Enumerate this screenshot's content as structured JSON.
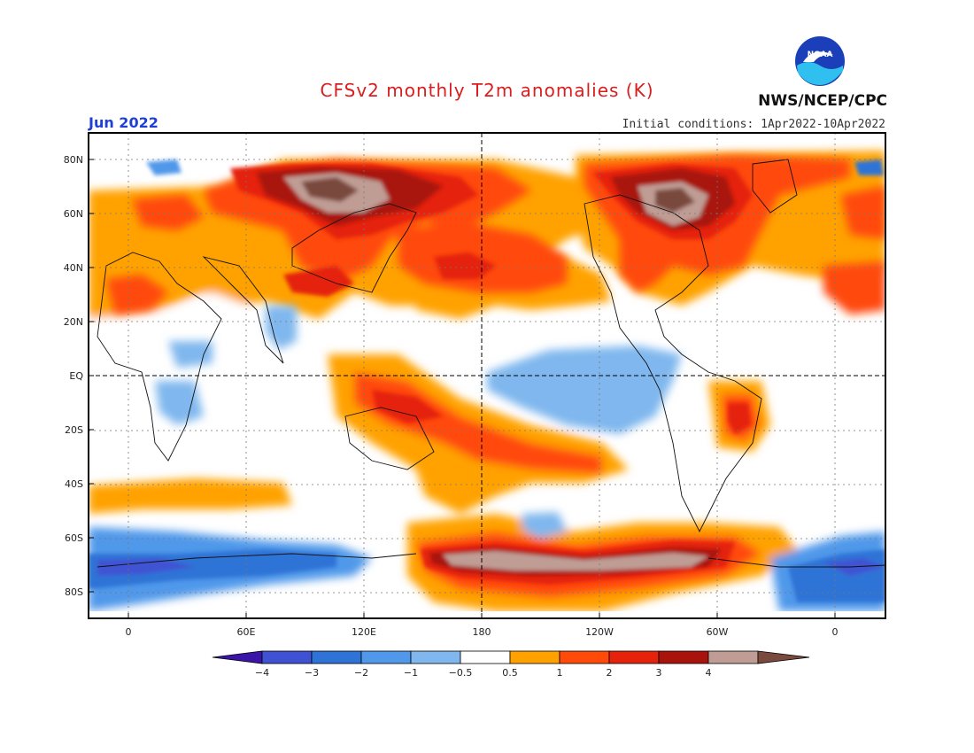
{
  "title": "CFSv2 monthly T2m anomalies (K)",
  "month": "Jun 2022",
  "initial_conditions": "Initial conditions: 1Apr2022-10Apr2022",
  "agency": "NWS/NCEP/CPC",
  "logo_text": "NOAA",
  "colors": {
    "neg4": "#3a15a8",
    "neg3": "#3f52d3",
    "neg2": "#2f73d6",
    "neg1": "#4f98ea",
    "neg05": "#7fb7ee",
    "neutral": "#ffffff",
    "pos05": "#ffa200",
    "pos1": "#ff4a0a",
    "pos2": "#e4230a",
    "pos3": "#a8130c",
    "pos4": "#bf9d94",
    "pos4plus": "#7a4a3e"
  },
  "chart_data": {
    "type": "heatmap",
    "variable": "T2m anomalies",
    "units": "K",
    "lat_ticks": [
      "80N",
      "60N",
      "40N",
      "20N",
      "EQ",
      "20S",
      "40S",
      "60S",
      "80S"
    ],
    "lon_ticks": [
      "0",
      "60E",
      "120E",
      "180",
      "120W",
      "60W",
      "0"
    ],
    "colorbar_levels": [
      "-4",
      "-3",
      "-2",
      "-1",
      "-0.5",
      "0.5",
      "1",
      "2",
      "3",
      "4"
    ],
    "regions": [
      {
        "lon": [
          60,
          130
        ],
        "lat": [
          55,
          75
        ],
        "anomaly": 4
      },
      {
        "lon": [
          240,
          290
        ],
        "lat": [
          55,
          75
        ],
        "anomaly": 3
      },
      {
        "lon": [
          150,
          240
        ],
        "lat": [
          30,
          50
        ],
        "anomaly": 2
      },
      {
        "lon": [
          190,
          280
        ],
        "lat": [
          -10,
          5
        ],
        "anomaly": -1
      },
      {
        "lon": [
          160,
          300
        ],
        "lat": [
          -72,
          -65
        ],
        "anomaly": 4
      },
      {
        "lon": [
          170,
          240
        ],
        "lat": [
          -35,
          -20
        ],
        "anomaly": 2
      },
      {
        "lon": [
          300,
          360
        ],
        "lat": [
          -80,
          -65
        ],
        "anomaly": -2
      },
      {
        "lon": [
          0,
          60
        ],
        "lat": [
          -75,
          -65
        ],
        "anomaly": -2
      },
      {
        "lon": [
          60,
          100
        ],
        "lat": [
          15,
          25
        ],
        "anomaly": -1
      }
    ]
  }
}
